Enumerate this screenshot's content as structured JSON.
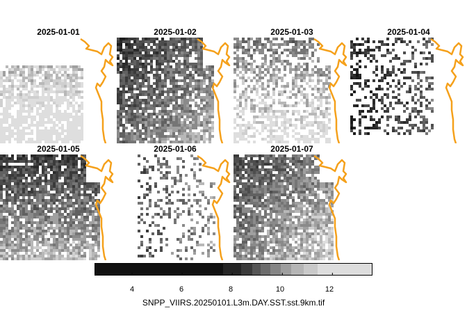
{
  "panels": [
    {
      "title": "2025-01-01"
    },
    {
      "title": "2025-01-02"
    },
    {
      "title": "2025-01-03"
    },
    {
      "title": "2025-01-04"
    },
    {
      "title": "2025-01-05"
    },
    {
      "title": "2025-01-06"
    },
    {
      "title": "2025-01-07"
    }
  ],
  "legend": {
    "ticks": [
      "4",
      "6",
      "8",
      "10",
      "12"
    ],
    "tick_values": [
      4,
      6,
      8,
      10,
      12
    ],
    "range": [
      2.5,
      13.6
    ],
    "caption": "SNPP_VIIRS.20250101.L3m.DAY.SST.sst.9km.tif"
  },
  "colors": {
    "coastline": "#f5a11c",
    "nodata": "#ffffff",
    "scale_low": "#111111",
    "scale_high": "#e2e2e2"
  }
}
